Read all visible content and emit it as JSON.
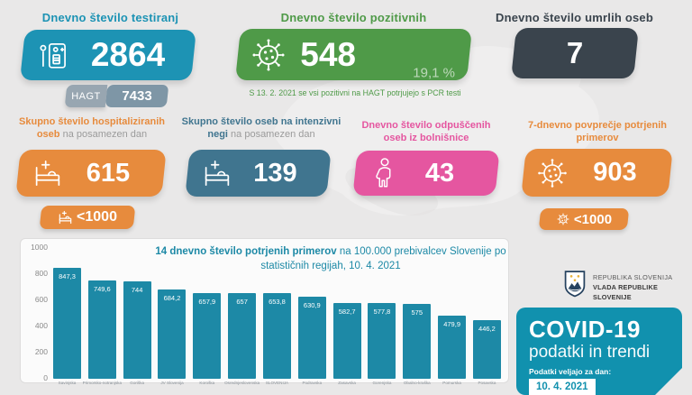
{
  "page": {
    "background": "#e9e8e8",
    "accent_teal": "#1d93b4",
    "accent_green": "#4f9a48",
    "accent_dark": "#3a444d",
    "accent_orange": "#e78b3d",
    "accent_steel": "#40758f",
    "accent_pink": "#e556a0",
    "covid_block_color": "#1191ae"
  },
  "row1": {
    "tests": {
      "title": "Dnevno število testiranj",
      "value": "2864",
      "icon": "test-kit-icon",
      "hagt": {
        "label": "HAGT",
        "value": "7433"
      }
    },
    "positive": {
      "title": "Dnevno število pozitivnih",
      "value": "548",
      "percent": "19,1 %",
      "icon": "virus-icon"
    },
    "deaths": {
      "title": "Dnevno število umrlih oseb",
      "value": "7"
    },
    "note": "S 13. 2. 2021 se vsi pozitivni na HAGT potrjujejo s PCR testi"
  },
  "row2": {
    "hospitalized": {
      "title_bold": "Skupno število hospitaliziranih oseb",
      "title_rest": " na posamezen dan",
      "value": "615",
      "badge": "<1000",
      "icon": "hospital-bed-icon"
    },
    "icu": {
      "title_bold": "Skupno število oseb na intenzivni negi",
      "title_rest": " na posamezen dan",
      "value": "139",
      "icon": "hospital-bed-icon"
    },
    "discharged": {
      "title_bold": "Dnevno število odpuščenih oseb iz bolnišnice",
      "title_rest": "",
      "value": "43",
      "icon": "person-icon"
    },
    "week_avg": {
      "title_bold": "7-dnevno povprečje potrjenih primerov",
      "title_rest": "",
      "value": "903",
      "badge": "<1000",
      "icon": "virus-icon"
    }
  },
  "chart_data": {
    "type": "bar",
    "title_bold": "14 dnevno število potrjenih primerov",
    "title_rest": " na 100.000 prebivalcev Slovenije po statističnih regijah, 10. 4. 2021",
    "categories": [
      "Savinjska",
      "Primorsko-notranjska",
      "Goriška",
      "JV Slovenija",
      "Koroška",
      "Osrednjeslovenska",
      "SLOVENIJA",
      "Podravska",
      "Zasavska",
      "Gorenjska",
      "Obalno-kraška",
      "Pomurska",
      "Posavska"
    ],
    "values": [
      847.3,
      749.6,
      744,
      684.2,
      657.9,
      657,
      653.8,
      630.9,
      582.7,
      577.8,
      575,
      479.9,
      446.2
    ],
    "value_labels": [
      "847,3",
      "749,6",
      "744",
      "684,2",
      "657,9",
      "657",
      "653,8",
      "630,9",
      "582,7",
      "577,8",
      "575",
      "479,9",
      "446,2"
    ],
    "y_ticks": [
      "1000",
      "800",
      "600",
      "400",
      "200",
      "0"
    ],
    "ylim": [
      0,
      1000
    ],
    "grid": false,
    "legend": "none",
    "bar_color": "#1d89a6",
    "value_label_position": "inside-top"
  },
  "footer": {
    "gov": {
      "line1": "REPUBLIKA SLOVENIJA",
      "line2": "VLADA REPUBLIKE SLOVENIJE"
    },
    "covid": {
      "title": "COVID-19",
      "subtitle": "podatki in trendi",
      "date_label": "Podatki veljajo za dan:",
      "date_value": "10. 4. 2021"
    }
  }
}
